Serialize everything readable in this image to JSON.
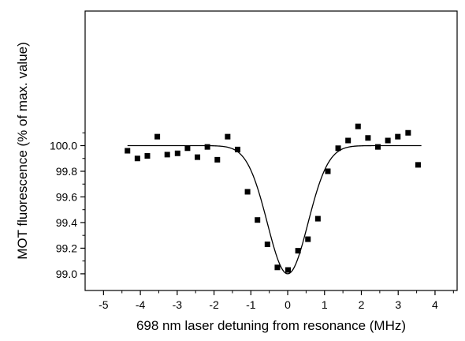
{
  "chart_data": {
    "type": "scatter",
    "xlabel": "698 nm laser detuning from resonance (MHz)",
    "ylabel": "MOT fluorescence (% of max. value)",
    "xlim": [
      -5.5,
      4.6
    ],
    "ylim": [
      98.87,
      101.05
    ],
    "x_ticks": [
      -5,
      -4,
      -3,
      -2,
      -1,
      0,
      1,
      2,
      3,
      4
    ],
    "y_ticks": [
      99.0,
      99.2,
      99.4,
      99.6,
      99.8,
      100.0
    ],
    "x_tick_labels": [
      "-5",
      "-4",
      "-3",
      "-2",
      "-1",
      "0",
      "1",
      "2",
      "3",
      "4"
    ],
    "y_tick_labels": [
      "99.0",
      "99.2",
      "99.4",
      "99.6",
      "99.8",
      "100.0"
    ],
    "grid": false,
    "series": [
      {
        "kind": "points",
        "marker": "square",
        "color": "#000000",
        "x": [
          -4.35,
          -4.08,
          -3.81,
          -3.54,
          -3.27,
          -2.99,
          -2.72,
          -2.45,
          -2.18,
          -1.91,
          -1.63,
          -1.36,
          -1.09,
          -0.82,
          -0.55,
          -0.28,
          0.01,
          0.28,
          0.55,
          0.82,
          1.09,
          1.37,
          1.64,
          1.91,
          2.18,
          2.45,
          2.72,
          2.99,
          3.27,
          3.54
        ],
        "y": [
          99.96,
          99.9,
          99.92,
          100.07,
          99.93,
          99.94,
          99.98,
          99.91,
          99.99,
          99.89,
          100.07,
          99.97,
          99.64,
          99.42,
          99.23,
          99.05,
          99.03,
          99.18,
          99.27,
          99.43,
          99.8,
          99.98,
          100.04,
          100.15,
          100.06,
          99.99,
          100.04,
          100.07,
          100.1,
          99.85
        ]
      },
      {
        "kind": "fit",
        "color": "#000000",
        "baseline": 100.0,
        "depth": 1.0,
        "center": 0.0,
        "sigma": 0.55
      }
    ]
  }
}
